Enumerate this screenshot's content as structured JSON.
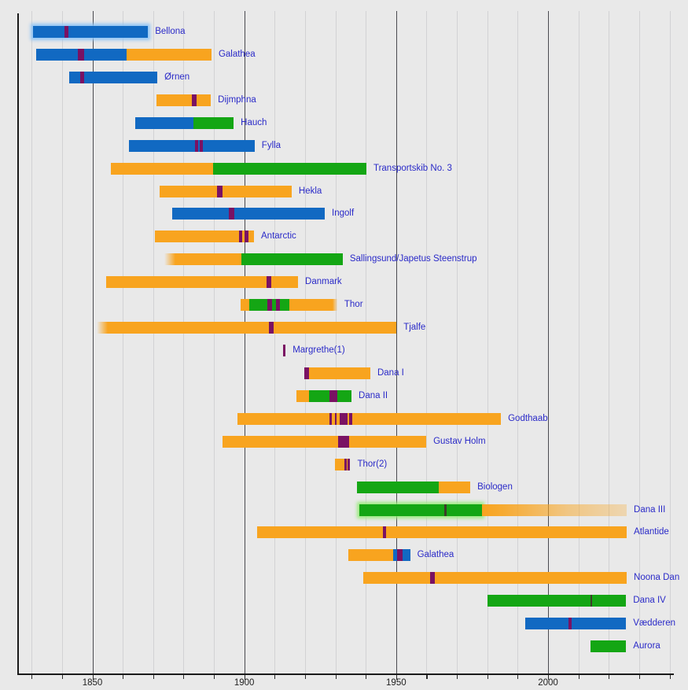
{
  "chart_data": {
    "type": "gantt-timeline",
    "description": "Timeline of Danish research ships: service periods (colored bars) with expedition markers (purple stripes)",
    "x_axis": {
      "min": 1825.3,
      "max": 2041.4,
      "major_ticks": [
        1850,
        1900,
        1950,
        2000
      ],
      "tick_labels": [
        "1850",
        "1900",
        "1950",
        "2000"
      ],
      "minor_tick_interval": 10,
      "grid": true
    },
    "colors": {
      "blue": "#1169c2",
      "orange": "#f8a41f",
      "green": "#14a614",
      "purple": "#7a1263",
      "dark": "#3c3c28",
      "glow_blue": "rgba(140,195,245,0.95)",
      "glow_green": "rgba(150,235,120,0.9)",
      "label": "#2a2ac8"
    },
    "ships": [
      {
        "name": "Bellona",
        "segments": [
          {
            "start": 1830.5,
            "end": 1868.3,
            "color": "blue",
            "glow": "glow_blue"
          }
        ],
        "markers": [
          {
            "start": 1840.7,
            "end": 1842.0,
            "color": "purple"
          }
        ]
      },
      {
        "name": "Galathea",
        "segments": [
          {
            "start": 1831.5,
            "end": 1861.3,
            "color": "blue"
          },
          {
            "start": 1861.3,
            "end": 1889.2,
            "color": "orange"
          }
        ],
        "markers": [
          {
            "start": 1845.2,
            "end": 1847.3,
            "color": "purple"
          }
        ]
      },
      {
        "name": "Ørnen",
        "segments": [
          {
            "start": 1842.4,
            "end": 1871.4,
            "color": "blue"
          }
        ],
        "markers": [
          {
            "start": 1845.9,
            "end": 1847.4,
            "color": "purple"
          }
        ]
      },
      {
        "name": "Dijmphna",
        "segments": [
          {
            "start": 1871.1,
            "end": 1889.0,
            "color": "orange"
          }
        ],
        "markers": [
          {
            "start": 1882.7,
            "end": 1884.3,
            "color": "purple"
          }
        ]
      },
      {
        "name": "Hauch",
        "segments": [
          {
            "start": 1864.1,
            "end": 1883.3,
            "color": "blue"
          },
          {
            "start": 1883.3,
            "end": 1896.5,
            "color": "green"
          }
        ],
        "markers": []
      },
      {
        "name": "Fylla",
        "segments": [
          {
            "start": 1862.0,
            "end": 1903.4,
            "color": "blue"
          }
        ],
        "markers": [
          {
            "start": 1883.8,
            "end": 1884.9,
            "color": "purple"
          },
          {
            "start": 1885.3,
            "end": 1886.4,
            "color": "purple"
          }
        ]
      },
      {
        "name": "Transportskib No. 3",
        "segments": [
          {
            "start": 1856.1,
            "end": 1889.7,
            "color": "orange"
          },
          {
            "start": 1889.7,
            "end": 1940.2,
            "color": "green"
          }
        ],
        "markers": []
      },
      {
        "name": "Hekla",
        "segments": [
          {
            "start": 1872.1,
            "end": 1915.6,
            "color": "orange"
          }
        ],
        "markers": [
          {
            "start": 1891.0,
            "end": 1892.9,
            "color": "purple"
          }
        ]
      },
      {
        "name": "Ingolf",
        "segments": [
          {
            "start": 1876.3,
            "end": 1926.5,
            "color": "blue"
          }
        ],
        "markers": [
          {
            "start": 1894.9,
            "end": 1896.6,
            "color": "purple"
          }
        ]
      },
      {
        "name": "Antarctic",
        "segments": [
          {
            "start": 1870.6,
            "end": 1903.2,
            "color": "orange"
          }
        ],
        "markers": [
          {
            "start": 1898.3,
            "end": 1899.4,
            "color": "purple"
          },
          {
            "start": 1900.1,
            "end": 1901.5,
            "color": "purple"
          }
        ]
      },
      {
        "name": "Sallingsund/Japetus Steenstrup",
        "segments": [
          {
            "start": 1873.7,
            "end": 1899.0,
            "color": "orange",
            "fade": "left"
          },
          {
            "start": 1899.0,
            "end": 1932.4,
            "color": "green"
          }
        ],
        "markers": []
      },
      {
        "name": "Danmark",
        "segments": [
          {
            "start": 1854.5,
            "end": 1917.7,
            "color": "orange"
          }
        ],
        "markers": [
          {
            "start": 1907.3,
            "end": 1909.0,
            "color": "purple"
          }
        ]
      },
      {
        "name": "Thor",
        "segments": [
          {
            "start": 1898.7,
            "end": 1901.6,
            "color": "orange"
          },
          {
            "start": 1901.6,
            "end": 1914.8,
            "color": "green"
          },
          {
            "start": 1914.8,
            "end": 1930.6,
            "color": "orange",
            "fade": "right"
          }
        ],
        "markers": [
          {
            "start": 1907.6,
            "end": 1909.1,
            "color": "purple"
          },
          {
            "start": 1910.4,
            "end": 1911.8,
            "color": "purple"
          }
        ]
      },
      {
        "name": "Tjalfe",
        "segments": [
          {
            "start": 1851.5,
            "end": 1950.1,
            "color": "orange",
            "fade": "left"
          }
        ],
        "markers": [
          {
            "start": 1908.1,
            "end": 1909.7,
            "color": "purple"
          }
        ]
      },
      {
        "name": "Margrethe(1)",
        "segments": [],
        "markers": [
          {
            "start": 1912.8,
            "end": 1913.6,
            "color": "purple"
          }
        ]
      },
      {
        "name": "Dana I",
        "segments": [
          {
            "start": 1919.8,
            "end": 1941.5,
            "color": "orange"
          }
        ],
        "markers": [
          {
            "start": 1919.8,
            "end": 1921.3,
            "color": "purple"
          }
        ]
      },
      {
        "name": "Dana II",
        "segments": [
          {
            "start": 1917.2,
            "end": 1921.3,
            "color": "orange"
          },
          {
            "start": 1921.3,
            "end": 1935.3,
            "color": "green"
          }
        ],
        "markers": [
          {
            "start": 1928.1,
            "end": 1930.7,
            "color": "purple"
          }
        ]
      },
      {
        "name": "Godthaab",
        "segments": [
          {
            "start": 1897.8,
            "end": 1984.5,
            "color": "orange"
          }
        ],
        "markers": [
          {
            "start": 1928.0,
            "end": 1928.7,
            "color": "purple"
          },
          {
            "start": 1929.8,
            "end": 1930.5,
            "color": "purple"
          },
          {
            "start": 1931.3,
            "end": 1934.0,
            "color": "purple"
          },
          {
            "start": 1934.6,
            "end": 1935.6,
            "color": "purple"
          }
        ]
      },
      {
        "name": "Gustav Holm",
        "segments": [
          {
            "start": 1892.8,
            "end": 1959.9,
            "color": "orange"
          }
        ],
        "markers": [
          {
            "start": 1930.9,
            "end": 1934.6,
            "color": "purple"
          }
        ]
      },
      {
        "name": "Thor(2)",
        "segments": [
          {
            "start": 1929.9,
            "end": 1934.8,
            "color": "orange"
          }
        ],
        "markers": [
          {
            "start": 1933.0,
            "end": 1933.8,
            "color": "purple"
          },
          {
            "start": 1934.1,
            "end": 1934.9,
            "color": "purple"
          }
        ]
      },
      {
        "name": "Biologen",
        "segments": [
          {
            "start": 1937.1,
            "end": 1964.0,
            "color": "green"
          },
          {
            "start": 1964.0,
            "end": 1974.4,
            "color": "orange"
          }
        ],
        "markers": []
      },
      {
        "name": "Dana III",
        "segments": [
          {
            "start": 1937.9,
            "end": 1978.2,
            "color": "green",
            "glow": "glow_green"
          },
          {
            "start": 1978.2,
            "end": 2025.9,
            "color": "orange",
            "fade": "right-long"
          }
        ],
        "markers": [
          {
            "start": 1965.9,
            "end": 1966.5,
            "color": "dark"
          }
        ]
      },
      {
        "name": "Atlantide",
        "segments": [
          {
            "start": 1904.1,
            "end": 2025.9,
            "color": "orange"
          }
        ],
        "markers": [
          {
            "start": 1945.6,
            "end": 1946.8,
            "color": "purple"
          }
        ]
      },
      {
        "name": "Galathea",
        "segments": [
          {
            "start": 1934.3,
            "end": 1949.0,
            "color": "orange"
          },
          {
            "start": 1949.0,
            "end": 1954.6,
            "color": "blue"
          }
        ],
        "markers": [
          {
            "start": 1950.3,
            "end": 1952.2,
            "color": "purple"
          }
        ]
      },
      {
        "name": "Noona Dan",
        "segments": [
          {
            "start": 1939.2,
            "end": 2025.9,
            "color": "orange"
          }
        ],
        "markers": [
          {
            "start": 1961.1,
            "end": 1962.8,
            "color": "purple"
          }
        ]
      },
      {
        "name": "Dana IV",
        "segments": [
          {
            "start": 1980.1,
            "end": 2025.7,
            "color": "green"
          }
        ],
        "markers": [
          {
            "start": 2013.9,
            "end": 2014.4,
            "color": "dark"
          }
        ]
      },
      {
        "name": "Vædderen",
        "segments": [
          {
            "start": 1992.5,
            "end": 2025.7,
            "color": "blue"
          }
        ],
        "markers": [
          {
            "start": 2006.8,
            "end": 2007.7,
            "color": "purple"
          }
        ]
      },
      {
        "name": "Aurora",
        "segments": [
          {
            "start": 2014.0,
            "end": 2025.7,
            "color": "green"
          }
        ],
        "markers": []
      }
    ]
  }
}
